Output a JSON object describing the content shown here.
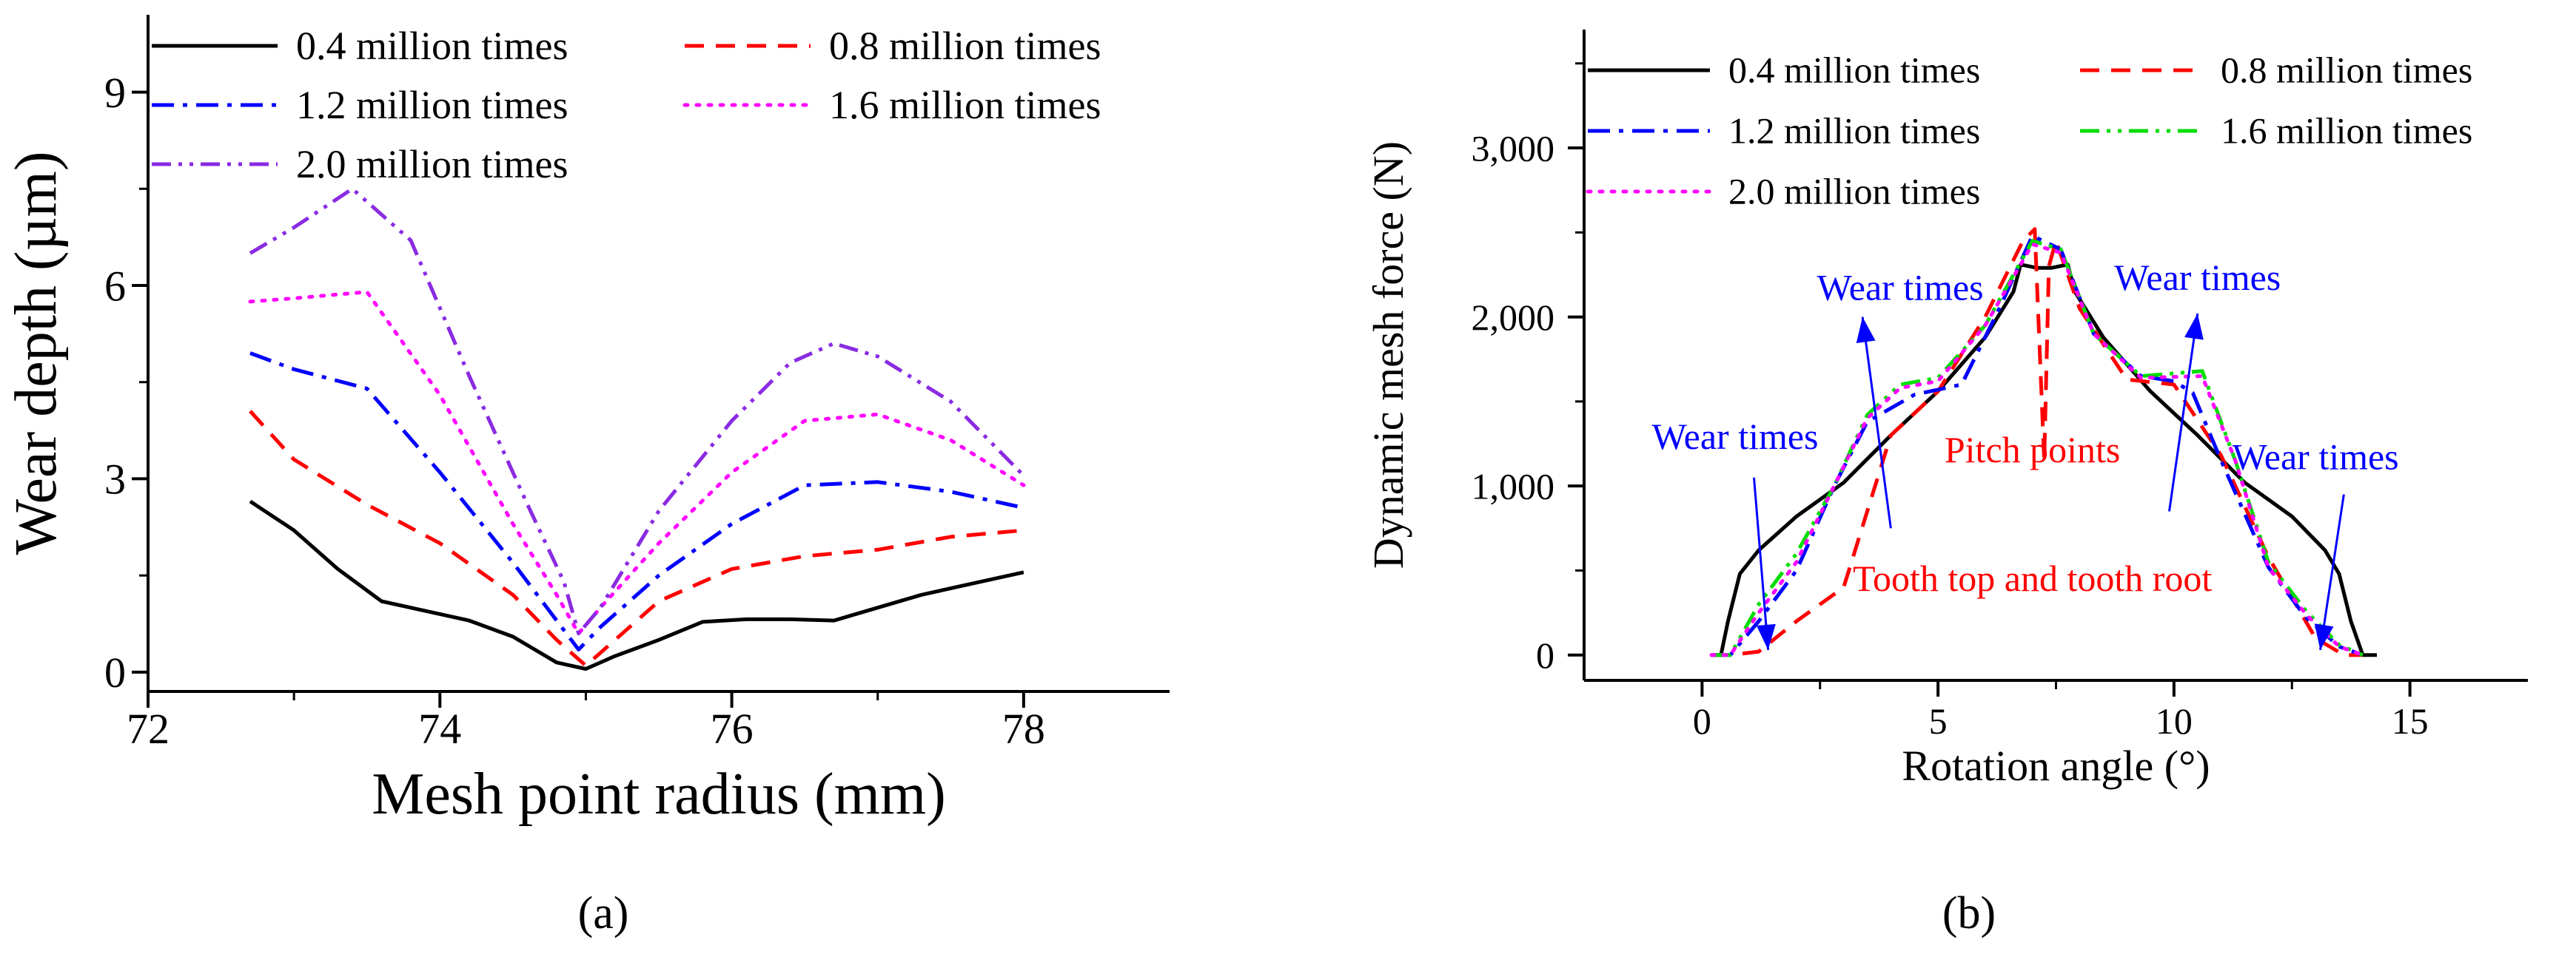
{
  "chart_data": [
    {
      "panel": "(a)",
      "type": "line",
      "xlabel": "Mesh point radius (mm)",
      "ylabel": "Wear depth (µm)",
      "xlim": [
        72,
        79
      ],
      "ylim": [
        -0.3,
        10.2
      ],
      "x_ticks": [
        72,
        74,
        76,
        78
      ],
      "y_ticks": [
        0,
        3,
        6,
        9
      ],
      "x_tick_labels": [
        "72",
        "74",
        "76",
        "78"
      ],
      "y_tick_labels": [
        "0",
        "3",
        "6",
        "9"
      ],
      "grid": false,
      "legend_position": "top-left",
      "series": [
        {
          "name": "0.4 million times",
          "color": "#000000",
          "dash": "solid",
          "x": [
            72.7,
            73.0,
            73.3,
            73.6,
            73.9,
            74.2,
            74.5,
            74.8,
            75.0,
            75.2,
            75.5,
            75.8,
            76.1,
            76.4,
            76.7,
            77.0,
            77.3,
            77.6,
            78.0
          ],
          "y": [
            2.65,
            2.2,
            1.6,
            1.1,
            0.95,
            0.8,
            0.55,
            0.15,
            0.05,
            0.25,
            0.5,
            0.78,
            0.82,
            0.82,
            0.8,
            1.0,
            1.2,
            1.35,
            1.55
          ]
        },
        {
          "name": "0.8 million times",
          "color": "#ff0000",
          "dash": "dash",
          "x": [
            72.7,
            73.0,
            73.5,
            74.0,
            74.5,
            74.8,
            75.0,
            75.2,
            75.5,
            76.0,
            76.5,
            77.0,
            77.5,
            78.0
          ],
          "y": [
            4.05,
            3.3,
            2.6,
            2.0,
            1.2,
            0.5,
            0.1,
            0.5,
            1.1,
            1.6,
            1.8,
            1.9,
            2.1,
            2.2
          ]
        },
        {
          "name": "1.2 million times",
          "color": "#0000ff",
          "dash": "dashdot",
          "x": [
            72.7,
            73.0,
            73.5,
            74.0,
            74.5,
            74.8,
            74.95,
            75.1,
            75.5,
            76.0,
            76.5,
            77.0,
            77.5,
            78.0
          ],
          "y": [
            4.95,
            4.7,
            4.4,
            3.1,
            1.7,
            0.8,
            0.35,
            0.7,
            1.5,
            2.3,
            2.9,
            2.95,
            2.8,
            2.55
          ]
        },
        {
          "name": "1.6 million times",
          "color": "#ff00ff",
          "dash": "dot",
          "x": [
            72.7,
            73.0,
            73.5,
            74.0,
            74.5,
            74.8,
            74.95,
            75.1,
            75.5,
            76.0,
            76.5,
            77.0,
            77.5,
            78.0
          ],
          "y": [
            5.75,
            5.8,
            5.9,
            4.3,
            2.3,
            1.2,
            0.6,
            1.0,
            2.0,
            3.1,
            3.9,
            4.0,
            3.6,
            2.9
          ]
        },
        {
          "name": "2.0 million times",
          "color": "#8a2be2",
          "dash": "dashdotdot",
          "x": [
            72.7,
            73.0,
            73.4,
            73.8,
            74.2,
            74.6,
            74.85,
            74.95,
            75.1,
            75.5,
            76.0,
            76.4,
            76.7,
            77.0,
            77.5,
            78.0
          ],
          "y": [
            6.5,
            6.9,
            7.5,
            6.7,
            4.6,
            2.6,
            1.4,
            0.6,
            1.0,
            2.5,
            3.9,
            4.8,
            5.1,
            4.9,
            4.2,
            3.05
          ]
        }
      ]
    },
    {
      "panel": "(b)",
      "type": "line",
      "xlabel": "Rotation angle (°)",
      "ylabel": "Dynamic mesh force (N)",
      "xlim": [
        -2.5,
        17.5
      ],
      "ylim": [
        -150,
        3700
      ],
      "x_ticks": [
        0,
        5,
        10,
        15
      ],
      "y_ticks": [
        0,
        1000,
        2000,
        3000
      ],
      "x_tick_labels": [
        "0",
        "5",
        "10",
        "15"
      ],
      "y_tick_labels": [
        "0",
        "1,000",
        "2,000",
        "3,000"
      ],
      "grid": false,
      "legend_position": "top-left",
      "annotations": [
        {
          "text": "Wear times",
          "color": "#0000ff",
          "x": 4.2,
          "y": 2100,
          "arrow_from": [
            4.0,
            750
          ],
          "arrow_to": [
            3.4,
            2000
          ]
        },
        {
          "text": "Wear times",
          "color": "#0000ff",
          "x": 10.5,
          "y": 2160,
          "arrow_from": [
            9.9,
            850
          ],
          "arrow_to": [
            10.5,
            2020
          ]
        },
        {
          "text": "Wear times",
          "color": "#0000ff",
          "x": 0.7,
          "y": 1220,
          "arrow_from": [
            1.1,
            1050
          ],
          "arrow_to": [
            1.4,
            30
          ]
        },
        {
          "text": "Wear times",
          "color": "#0000ff",
          "x": 13.0,
          "y": 1100,
          "arrow_from": [
            13.6,
            950
          ],
          "arrow_to": [
            13.1,
            30
          ]
        },
        {
          "text": "Pitch points",
          "color": "#ff0000",
          "x": 7.0,
          "y": 1140
        },
        {
          "text": "Tooth top and tooth root",
          "color": "#ff0000",
          "x": 7.0,
          "y": 380
        }
      ],
      "series": [
        {
          "name": "0.4 million times",
          "color": "#000000",
          "dash": "solid",
          "x": [
            0.2,
            0.4,
            0.55,
            0.8,
            1.2,
            2.0,
            3.0,
            4.0,
            5.0,
            6.0,
            6.6,
            6.75,
            7.1,
            7.4,
            7.75,
            7.9,
            8.5,
            9.5,
            10.5,
            11.5,
            12.5,
            13.2,
            13.5,
            13.75,
            14.0,
            14.3
          ],
          "y": [
            0,
            0,
            200,
            480,
            620,
            820,
            1020,
            1300,
            1560,
            1880,
            2150,
            2310,
            2290,
            2290,
            2310,
            2150,
            1880,
            1560,
            1300,
            1020,
            820,
            620,
            480,
            200,
            0,
            0
          ]
        },
        {
          "name": "0.8 million times",
          "color": "#ff0000",
          "dash": "dash",
          "x": [
            0.2,
            0.6,
            1.2,
            2.0,
            3.0,
            4.0,
            5.0,
            6.0,
            6.8,
            7.05,
            7.25,
            7.35,
            7.5,
            8.0,
            9.0,
            10.0,
            11.0,
            12.0,
            13.0,
            13.6,
            14.0
          ],
          "y": [
            0,
            0,
            20,
            200,
            400,
            1300,
            1560,
            2000,
            2450,
            2520,
            1150,
            2300,
            2450,
            2050,
            1630,
            1600,
            1180,
            580,
            100,
            0,
            0
          ]
        },
        {
          "name": "1.2 million times",
          "color": "#0000ff",
          "dash": "dashdot",
          "x": [
            0.2,
            0.6,
            1.2,
            2.0,
            2.8,
            3.5,
            4.5,
            5.5,
            6.3,
            7.0,
            7.6,
            8.3,
            9.3,
            10.0,
            10.4,
            11.0,
            12.0,
            12.8,
            13.5,
            14.0
          ],
          "y": [
            0,
            0,
            200,
            500,
            1000,
            1380,
            1540,
            1600,
            2050,
            2480,
            2400,
            1900,
            1650,
            1620,
            1550,
            1150,
            520,
            220,
            50,
            0
          ]
        },
        {
          "name": "1.6 million times",
          "color": "#00dd00",
          "dash": "dashdotdot",
          "x": [
            0.2,
            0.6,
            1.2,
            2.0,
            2.8,
            3.5,
            4.2,
            5.0,
            6.0,
            7.0,
            7.6,
            8.3,
            9.3,
            10.6,
            11.3,
            12.0,
            12.8,
            13.5,
            14.0
          ],
          "y": [
            0,
            0,
            300,
            600,
            1000,
            1420,
            1600,
            1640,
            1950,
            2450,
            2400,
            1900,
            1650,
            1680,
            1150,
            550,
            260,
            60,
            0
          ]
        },
        {
          "name": "2.0 million times",
          "color": "#ff00ff",
          "dash": "dot",
          "x": [
            0.2,
            0.6,
            1.2,
            2.0,
            2.8,
            3.5,
            4.2,
            5.0,
            6.0,
            7.0,
            7.6,
            8.3,
            9.3,
            10.6,
            11.3,
            12.0,
            12.8,
            13.5,
            14.0
          ],
          "y": [
            0,
            0,
            250,
            550,
            1000,
            1400,
            1580,
            1620,
            1950,
            2430,
            2380,
            1900,
            1640,
            1650,
            1150,
            520,
            240,
            50,
            0
          ]
        }
      ]
    }
  ],
  "panel_labels": {
    "a": "(a)",
    "b": "(b)"
  }
}
